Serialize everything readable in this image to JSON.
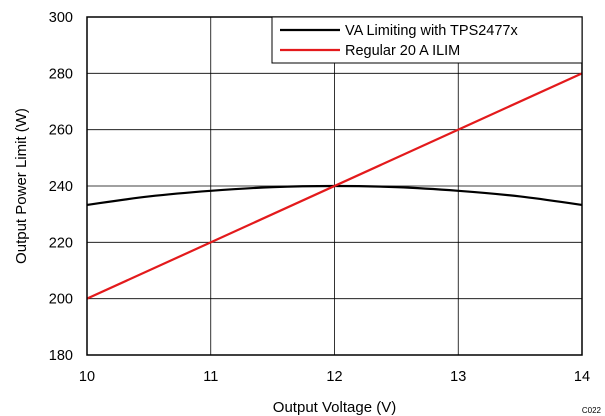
{
  "chart_data": {
    "type": "line",
    "xlabel": "Output Voltage (V)",
    "ylabel": "Output Power Limit (W)",
    "xlim": [
      10,
      14
    ],
    "ylim": [
      180,
      300
    ],
    "xticks": [
      10,
      11,
      12,
      13,
      14
    ],
    "yticks": [
      180,
      200,
      220,
      240,
      260,
      280,
      300
    ],
    "grid": true,
    "legend_position": "top-right",
    "figure_id": "C022",
    "series": [
      {
        "name": "VA Limiting with TPS2477x",
        "color": "#000000",
        "x": [
          10,
          10.5,
          11,
          11.5,
          12,
          12.5,
          13,
          13.5,
          14
        ],
        "y": [
          233.3,
          236.3,
          238.3,
          239.6,
          240,
          239.6,
          238.3,
          236.3,
          233.3
        ]
      },
      {
        "name": "Regular 20 A ILIM",
        "color": "#e31a1c",
        "x": [
          10,
          14
        ],
        "y": [
          200,
          280
        ]
      }
    ]
  }
}
